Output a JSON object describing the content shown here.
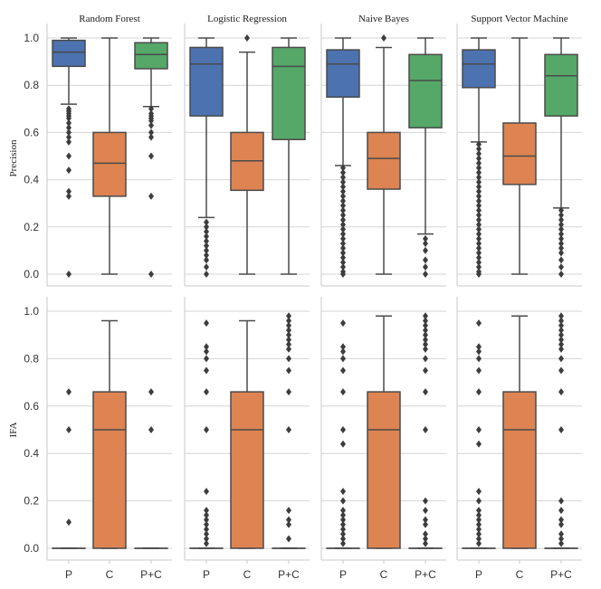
{
  "chart_data": {
    "type": "box",
    "figure": "Grid of box plots: rows are metrics, columns are classifiers",
    "classifiers": [
      "Random Forest",
      "Logistic Regression",
      "Naive Bayes",
      "Support Vector Machine"
    ],
    "categories": [
      "P",
      "C",
      "P+C"
    ],
    "category_colors": [
      "#4c72b0",
      "#dd8452",
      "#55a868"
    ],
    "yticks": [
      "0.0",
      "0.2",
      "0.4",
      "0.6",
      "0.8",
      "1.0"
    ],
    "ylim": [
      -0.04,
      1.04
    ],
    "rows": [
      {
        "ylabel": "Precision",
        "panels": [
          {
            "title": "Random Forest",
            "boxes": [
              {
                "cat": "P",
                "whislo": 0.72,
                "q1": 0.88,
                "med": 0.94,
                "q3": 0.99,
                "whishi": 1.0,
                "fliers": [
                  0.7,
                  0.69,
                  0.68,
                  0.67,
                  0.66,
                  0.64,
                  0.62,
                  0.6,
                  0.58,
                  0.56,
                  0.5,
                  0.44,
                  0.35,
                  0.33,
                  0.0
                ]
              },
              {
                "cat": "C",
                "whislo": 0.0,
                "q1": 0.33,
                "med": 0.47,
                "q3": 0.6,
                "whishi": 1.0,
                "fliers": []
              },
              {
                "cat": "P+C",
                "whislo": 0.71,
                "q1": 0.87,
                "med": 0.93,
                "q3": 0.98,
                "whishi": 1.0,
                "fliers": [
                  0.7,
                  0.68,
                  0.67,
                  0.66,
                  0.65,
                  0.63,
                  0.6,
                  0.58,
                  0.5,
                  0.33,
                  0.0
                ]
              }
            ]
          },
          {
            "title": "Logistic Regression",
            "boxes": [
              {
                "cat": "P",
                "whislo": 0.24,
                "q1": 0.67,
                "med": 0.89,
                "q3": 0.96,
                "whishi": 1.0,
                "fliers": [
                  0.22,
                  0.2,
                  0.18,
                  0.16,
                  0.14,
                  0.12,
                  0.1,
                  0.08,
                  0.06,
                  0.03,
                  0.0
                ]
              },
              {
                "cat": "C",
                "whislo": 0.0,
                "q1": 0.355,
                "med": 0.48,
                "q3": 0.6,
                "whishi": 0.94,
                "fliers": [
                  1.0
                ]
              },
              {
                "cat": "P+C",
                "whislo": 0.0,
                "q1": 0.57,
                "med": 0.88,
                "q3": 0.96,
                "whishi": 1.0,
                "fliers": []
              }
            ]
          },
          {
            "title": "Naive Bayes",
            "boxes": [
              {
                "cat": "P",
                "whislo": 0.46,
                "q1": 0.75,
                "med": 0.89,
                "q3": 0.95,
                "whishi": 1.0,
                "fliers": [
                  0.45,
                  0.43,
                  0.41,
                  0.39,
                  0.37,
                  0.35,
                  0.33,
                  0.31,
                  0.29,
                  0.27,
                  0.25,
                  0.23,
                  0.21,
                  0.19,
                  0.17,
                  0.15,
                  0.13,
                  0.11,
                  0.09,
                  0.07,
                  0.05,
                  0.03,
                  0.01,
                  0.0
                ]
              },
              {
                "cat": "C",
                "whislo": 0.0,
                "q1": 0.36,
                "med": 0.49,
                "q3": 0.6,
                "whishi": 0.96,
                "fliers": [
                  1.0
                ]
              },
              {
                "cat": "P+C",
                "whislo": 0.17,
                "q1": 0.62,
                "med": 0.82,
                "q3": 0.93,
                "whishi": 1.0,
                "fliers": [
                  0.15,
                  0.13,
                  0.1,
                  0.06,
                  0.03,
                  0.0
                ]
              }
            ]
          },
          {
            "title": "Support Vector Machine",
            "boxes": [
              {
                "cat": "P",
                "whislo": 0.56,
                "q1": 0.79,
                "med": 0.89,
                "q3": 0.95,
                "whishi": 1.0,
                "fliers": [
                  0.55,
                  0.53,
                  0.51,
                  0.49,
                  0.47,
                  0.45,
                  0.43,
                  0.41,
                  0.39,
                  0.37,
                  0.35,
                  0.33,
                  0.31,
                  0.29,
                  0.27,
                  0.25,
                  0.23,
                  0.21,
                  0.19,
                  0.17,
                  0.15,
                  0.13,
                  0.11,
                  0.09,
                  0.07,
                  0.05,
                  0.03,
                  0.01,
                  0.0
                ]
              },
              {
                "cat": "C",
                "whislo": 0.0,
                "q1": 0.38,
                "med": 0.5,
                "q3": 0.64,
                "whishi": 1.0,
                "fliers": []
              },
              {
                "cat": "P+C",
                "whislo": 0.28,
                "q1": 0.67,
                "med": 0.84,
                "q3": 0.93,
                "whishi": 1.0,
                "fliers": [
                  0.27,
                  0.25,
                  0.23,
                  0.21,
                  0.19,
                  0.17,
                  0.15,
                  0.13,
                  0.11,
                  0.09,
                  0.06,
                  0.03,
                  0.0
                ]
              }
            ]
          }
        ]
      },
      {
        "ylabel": "IFA",
        "panels": [
          {
            "title": "Random Forest",
            "boxes": [
              {
                "cat": "P",
                "whislo": 0.0,
                "q1": 0.0,
                "med": 0.0,
                "q3": 0.0,
                "whishi": 0.0,
                "fliers": [
                  0.66,
                  0.5,
                  0.11
                ]
              },
              {
                "cat": "C",
                "whislo": 0.0,
                "q1": 0.0,
                "med": 0.5,
                "q3": 0.66,
                "whishi": 0.96,
                "fliers": []
              },
              {
                "cat": "P+C",
                "whislo": 0.0,
                "q1": 0.0,
                "med": 0.0,
                "q3": 0.0,
                "whishi": 0.0,
                "fliers": [
                  0.66,
                  0.5
                ]
              }
            ]
          },
          {
            "title": "Logistic Regression",
            "boxes": [
              {
                "cat": "P",
                "whislo": 0.0,
                "q1": 0.0,
                "med": 0.0,
                "q3": 0.0,
                "whishi": 0.0,
                "fliers": [
                  0.95,
                  0.85,
                  0.83,
                  0.8,
                  0.75,
                  0.66,
                  0.5,
                  0.24,
                  0.16,
                  0.14,
                  0.12,
                  0.1,
                  0.08,
                  0.06,
                  0.04,
                  0.02
                ]
              },
              {
                "cat": "C",
                "whislo": 0.0,
                "q1": 0.0,
                "med": 0.5,
                "q3": 0.66,
                "whishi": 0.96,
                "fliers": []
              },
              {
                "cat": "P+C",
                "whislo": 0.0,
                "q1": 0.0,
                "med": 0.0,
                "q3": 0.0,
                "whishi": 0.0,
                "fliers": [
                  0.98,
                  0.96,
                  0.94,
                  0.92,
                  0.9,
                  0.88,
                  0.86,
                  0.84,
                  0.8,
                  0.75,
                  0.66,
                  0.5,
                  0.16,
                  0.12,
                  0.1,
                  0.04
                ]
              }
            ]
          },
          {
            "title": "Naive Bayes",
            "boxes": [
              {
                "cat": "P",
                "whislo": 0.0,
                "q1": 0.0,
                "med": 0.0,
                "q3": 0.0,
                "whishi": 0.0,
                "fliers": [
                  0.95,
                  0.85,
                  0.83,
                  0.8,
                  0.75,
                  0.66,
                  0.5,
                  0.44,
                  0.24,
                  0.2,
                  0.16,
                  0.14,
                  0.12,
                  0.1,
                  0.08,
                  0.06,
                  0.04,
                  0.02
                ]
              },
              {
                "cat": "C",
                "whislo": 0.0,
                "q1": 0.0,
                "med": 0.5,
                "q3": 0.66,
                "whishi": 0.98,
                "fliers": []
              },
              {
                "cat": "P+C",
                "whislo": 0.0,
                "q1": 0.0,
                "med": 0.0,
                "q3": 0.0,
                "whishi": 0.0,
                "fliers": [
                  0.98,
                  0.96,
                  0.94,
                  0.92,
                  0.9,
                  0.88,
                  0.86,
                  0.84,
                  0.8,
                  0.75,
                  0.66,
                  0.5,
                  0.2,
                  0.16,
                  0.12,
                  0.1,
                  0.06,
                  0.04,
                  0.02
                ]
              }
            ]
          },
          {
            "title": "Support Vector Machine",
            "boxes": [
              {
                "cat": "P",
                "whislo": 0.0,
                "q1": 0.0,
                "med": 0.0,
                "q3": 0.0,
                "whishi": 0.0,
                "fliers": [
                  0.95,
                  0.85,
                  0.83,
                  0.8,
                  0.75,
                  0.66,
                  0.5,
                  0.44,
                  0.24,
                  0.2,
                  0.16,
                  0.14,
                  0.12,
                  0.1,
                  0.08,
                  0.06,
                  0.04,
                  0.02
                ]
              },
              {
                "cat": "C",
                "whislo": 0.0,
                "q1": 0.0,
                "med": 0.5,
                "q3": 0.66,
                "whishi": 0.98,
                "fliers": []
              },
              {
                "cat": "P+C",
                "whislo": 0.0,
                "q1": 0.0,
                "med": 0.0,
                "q3": 0.0,
                "whishi": 0.0,
                "fliers": [
                  0.98,
                  0.96,
                  0.94,
                  0.92,
                  0.9,
                  0.88,
                  0.86,
                  0.84,
                  0.8,
                  0.75,
                  0.66,
                  0.5,
                  0.2,
                  0.16,
                  0.12,
                  0.1,
                  0.06,
                  0.04,
                  0.02
                ]
              }
            ]
          }
        ]
      }
    ]
  }
}
